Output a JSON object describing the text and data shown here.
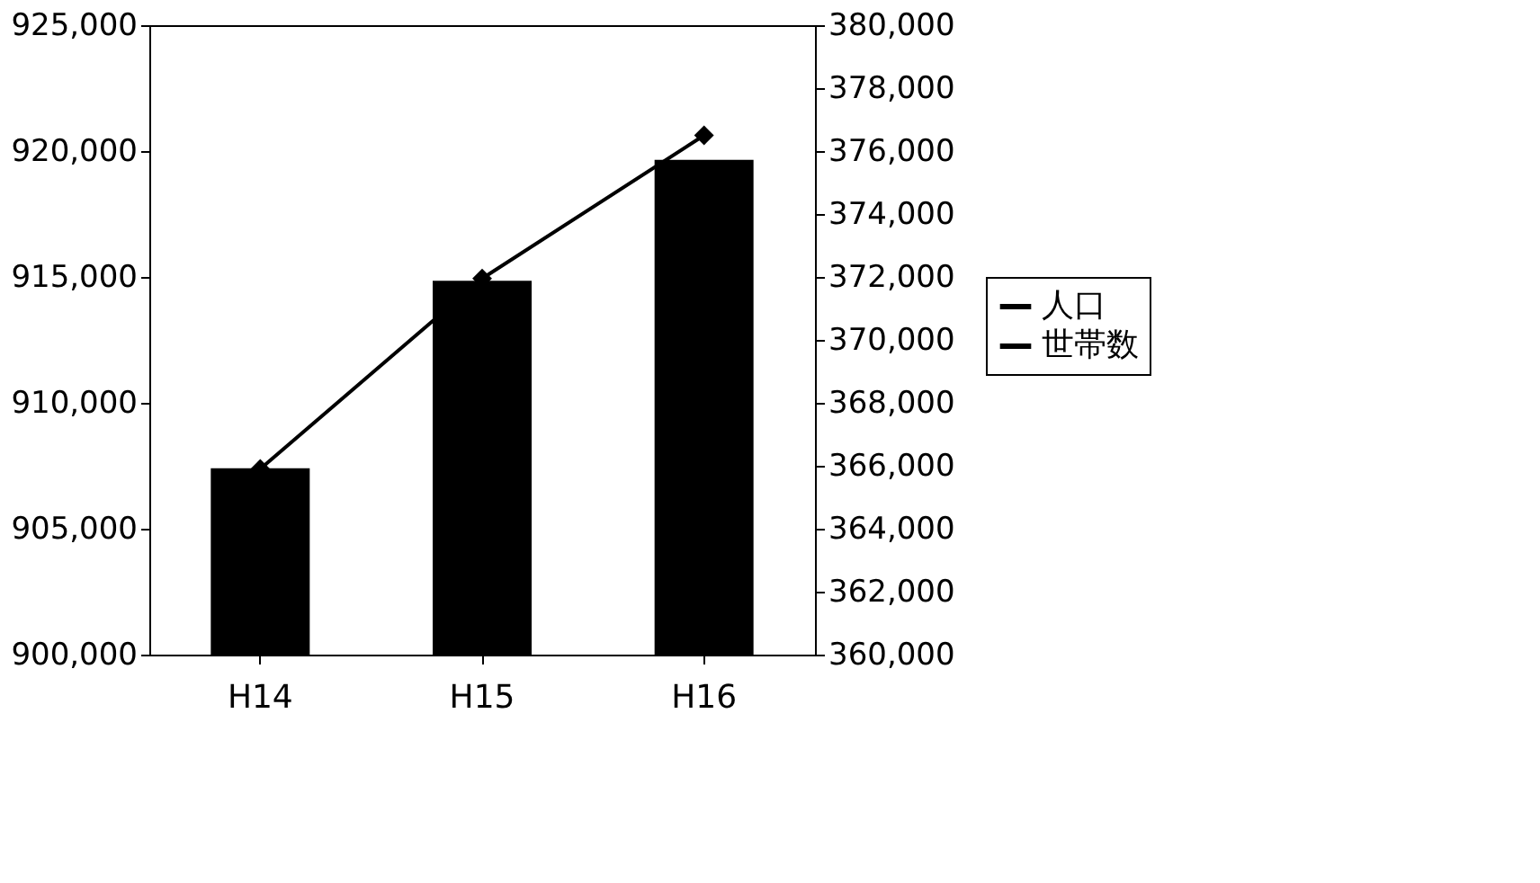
{
  "chart_data": {
    "type": "bar",
    "categories": [
      "H14",
      "H15",
      "H16"
    ],
    "series": [
      {
        "name": "人口",
        "color": "#000000",
        "values": [
          907400,
          914850,
          919650
        ]
      },
      {
        "name": "世帯数",
        "type": "line",
        "axis": "y2",
        "color": "#000000",
        "marker": "diamond",
        "values": [
          365900,
          371950,
          376500
        ]
      }
    ],
    "ylim": [
      900000,
      925000
    ],
    "yticks": [
      {
        "value": 900000,
        "label": "900,000"
      },
      {
        "value": 905000,
        "label": "905,000"
      },
      {
        "value": 910000,
        "label": "910,000"
      },
      {
        "value": 915000,
        "label": "915,000"
      },
      {
        "value": 920000,
        "label": "920,000"
      },
      {
        "value": 925000,
        "label": "925,000"
      }
    ],
    "y2lim": [
      360000,
      380000
    ],
    "y2ticks": [
      {
        "value": 360000,
        "label": "360,000"
      },
      {
        "value": 362000,
        "label": "362,000"
      },
      {
        "value": 364000,
        "label": "364,000"
      },
      {
        "value": 366000,
        "label": "366,000"
      },
      {
        "value": 368000,
        "label": "368,000"
      },
      {
        "value": 370000,
        "label": "370,000"
      },
      {
        "value": 372000,
        "label": "372,000"
      },
      {
        "value": 374000,
        "label": "374,000"
      },
      {
        "value": 376000,
        "label": "376,000"
      },
      {
        "value": 378000,
        "label": "378,000"
      },
      {
        "value": 380000,
        "label": "380,000"
      }
    ],
    "grid": false,
    "legend": "right"
  }
}
